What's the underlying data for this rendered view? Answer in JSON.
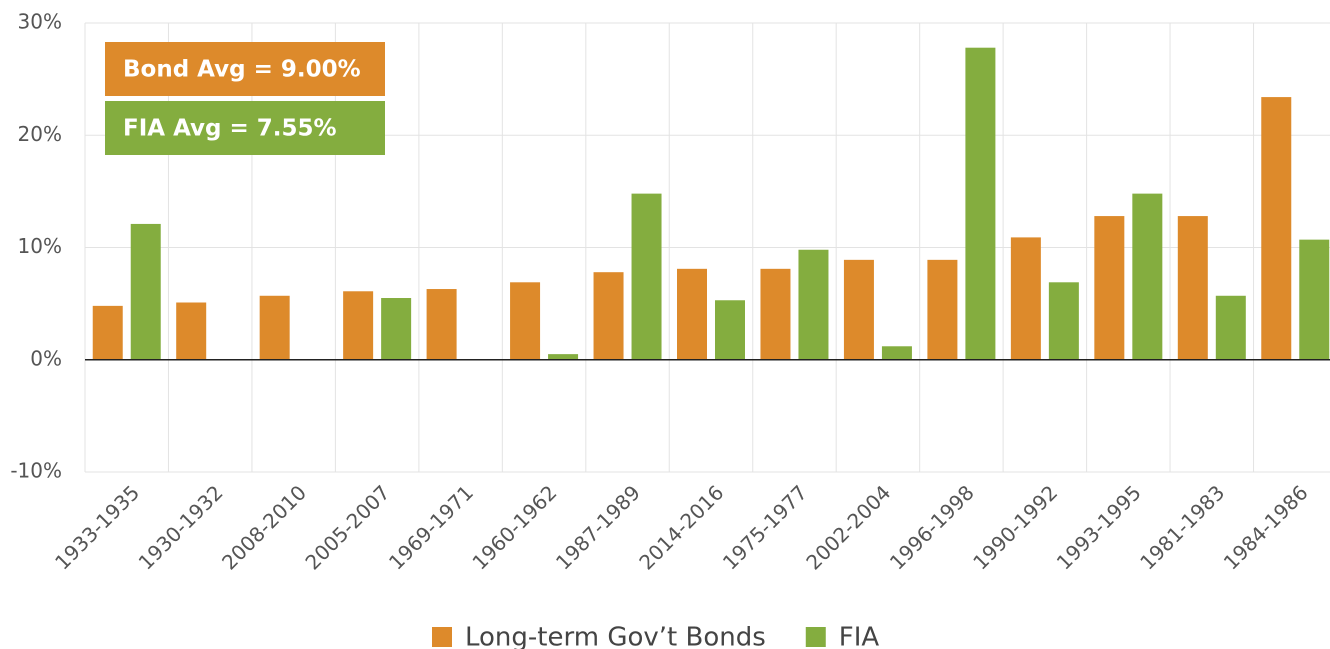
{
  "chart_data": {
    "type": "bar",
    "categories": [
      "1933-1935",
      "1930-1932",
      "2008-2010",
      "2005-2007",
      "1969-1971",
      "1960-1962",
      "1987-1989",
      "2014-2016",
      "1975-1977",
      "2002-2004",
      "1996-1998",
      "1990-1992",
      "1993-1995",
      "1981-1983",
      "1984-1986"
    ],
    "series": [
      {
        "name": "Long-term Gov’t Bonds",
        "color": "#dd8a2b",
        "values": [
          4.8,
          5.1,
          5.7,
          6.1,
          6.3,
          6.9,
          7.8,
          8.1,
          8.1,
          8.9,
          8.9,
          10.9,
          12.8,
          12.8,
          23.4
        ]
      },
      {
        "name": "FIA",
        "color": "#84ad3f",
        "values": [
          12.1,
          0,
          0,
          5.5,
          0,
          0.5,
          14.8,
          5.3,
          9.8,
          1.2,
          27.8,
          6.9,
          14.8,
          5.7,
          10.7
        ]
      }
    ],
    "annotations": [
      {
        "text": "Bond Avg = 9.00%",
        "color": "#dd8a2b"
      },
      {
        "text": "FIA Avg = 7.55%",
        "color": "#84ad3f"
      }
    ],
    "ylim": [
      -10,
      30
    ],
    "yticks": [
      {
        "value": -10,
        "label": "-10%"
      },
      {
        "value": 0,
        "label": "0%"
      },
      {
        "value": 10,
        "label": "10%"
      },
      {
        "value": 20,
        "label": "20%"
      },
      {
        "value": 30,
        "label": "30%"
      }
    ],
    "grid": true,
    "legend": "bottom"
  }
}
